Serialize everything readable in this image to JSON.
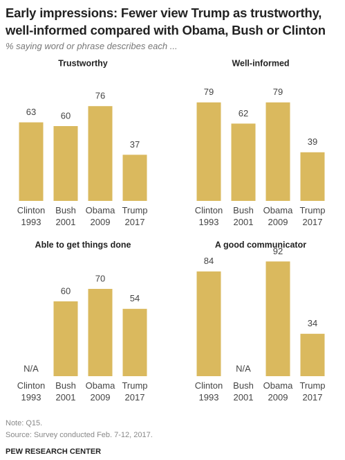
{
  "title": "Early impressions: Fewer view Trump as trustworthy, well-informed compared with Obama, Bush or Clinton",
  "subtitle": "% saying word or phrase describes each ...",
  "chart_data": [
    {
      "type": "bar",
      "title": "Trustworthy",
      "categories": [
        "Clinton\n1993",
        "Bush\n2001",
        "Obama\n2009",
        "Trump\n2017"
      ],
      "values": [
        63,
        60,
        76,
        37
      ],
      "color": "#dab95e"
    },
    {
      "type": "bar",
      "title": "Well-informed",
      "categories": [
        "Clinton\n1993",
        "Bush\n2001",
        "Obama\n2009",
        "Trump\n2017"
      ],
      "values": [
        79,
        62,
        79,
        39
      ],
      "color": "#dab95e"
    },
    {
      "type": "bar",
      "title": "Able to get things done",
      "categories": [
        "Clinton\n1993",
        "Bush\n2001",
        "Obama\n2009",
        "Trump\n2017"
      ],
      "values": [
        null,
        60,
        70,
        54
      ],
      "value_labels": [
        "N/A",
        null,
        null,
        null
      ],
      "color": "#dab95e"
    },
    {
      "type": "bar",
      "title": "A good communicator",
      "categories": [
        "Clinton\n1993",
        "Bush\n2001",
        "Obama\n2009",
        "Trump\n2017"
      ],
      "values": [
        84,
        null,
        92,
        34
      ],
      "value_labels": [
        null,
        "N/A",
        null,
        null
      ],
      "color": "#dab95e"
    }
  ],
  "note": "Note: Q15.",
  "source": "Source: Survey conducted Feb. 7-12, 2017.",
  "credit": "PEW RESEARCH CENTER"
}
